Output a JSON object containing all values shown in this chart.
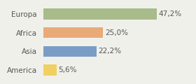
{
  "categories": [
    "Europa",
    "Africa",
    "Asia",
    "America"
  ],
  "values": [
    47.2,
    25.0,
    22.2,
    5.6
  ],
  "labels": [
    "47,2%",
    "25,0%",
    "22,2%",
    "5,6%"
  ],
  "bar_colors": [
    "#a8bb8a",
    "#e8aa78",
    "#7a9dc5",
    "#f0d060"
  ],
  "background_color": "#f0f0eb",
  "xlim": [
    0,
    62
  ],
  "bar_height": 0.58,
  "label_fontsize": 7.5,
  "tick_fontsize": 7.5
}
